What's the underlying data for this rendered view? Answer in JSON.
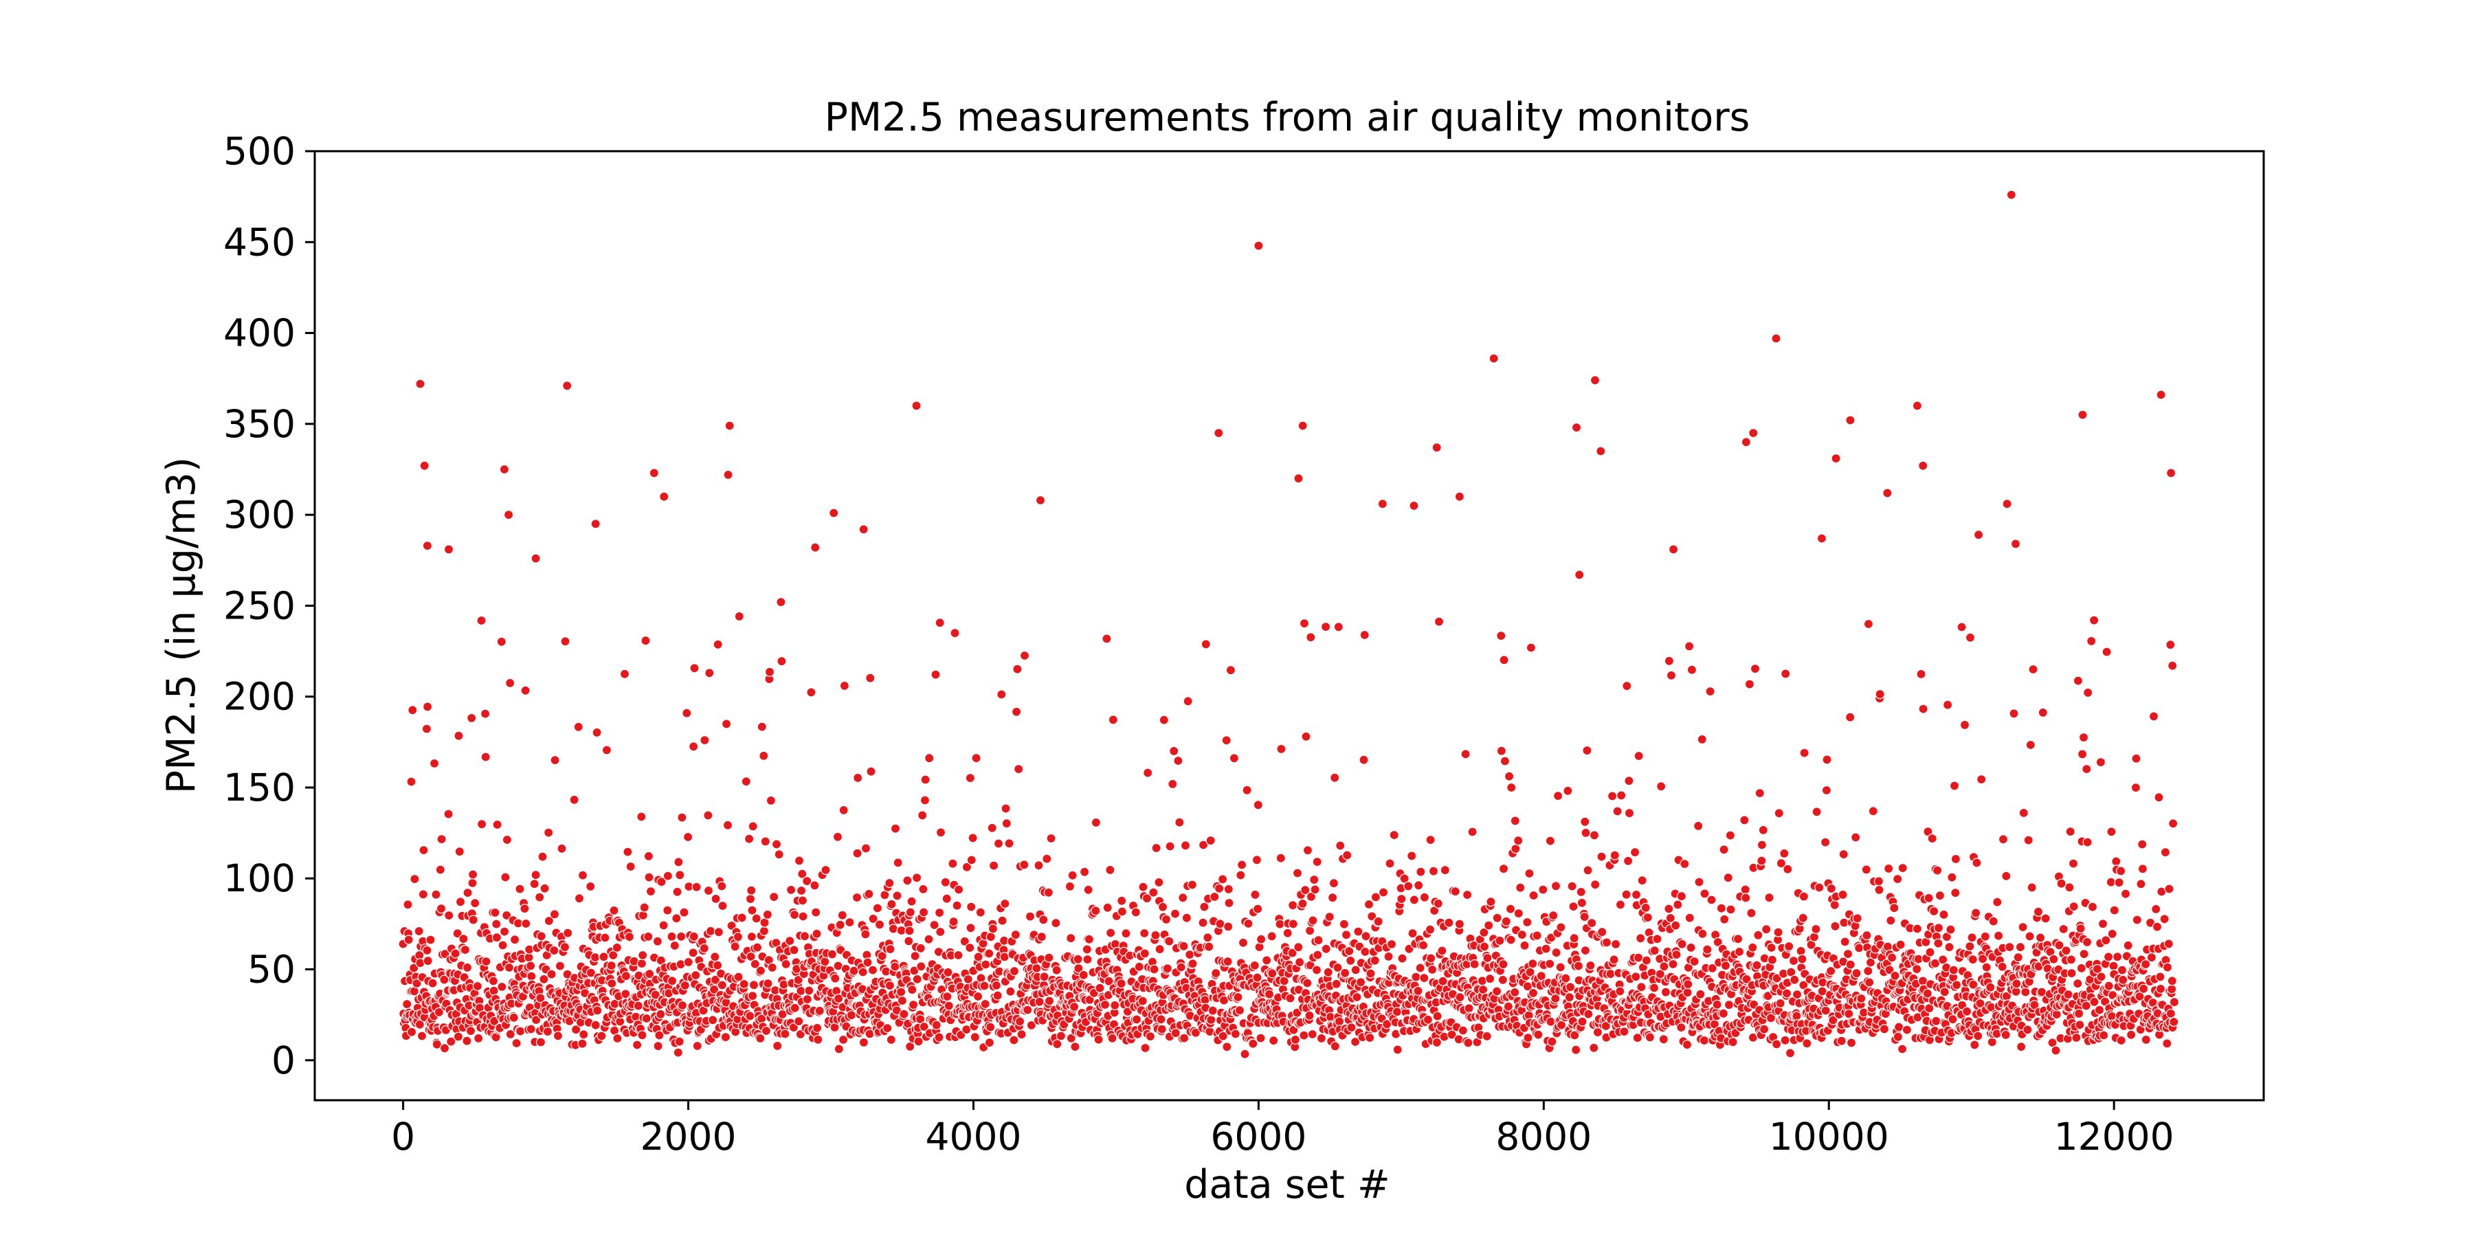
{
  "chart_data": {
    "type": "scatter",
    "title": "PM2.5 measurements from air quality monitors",
    "xlabel": "data set #",
    "ylabel": "PM2.5 (in µg/m3)",
    "xlim": [
      -620,
      13050
    ],
    "ylim": [
      -22,
      500
    ],
    "xticks": [
      0,
      2000,
      4000,
      6000,
      8000,
      10000,
      12000
    ],
    "yticks": [
      0,
      50,
      100,
      150,
      200,
      250,
      300,
      350,
      400,
      450,
      500
    ],
    "grid": false,
    "legend": "none",
    "marker_color": "#e8171b",
    "marker_edge_color": "#ffffff",
    "n_points": 12425,
    "series": [
      {
        "x": [
          120,
          150,
          170,
          320,
          710,
          740,
          930,
          1150,
          1350,
          1760,
          1830,
          2290,
          2280,
          2650,
          2890,
          3020,
          3230,
          3600,
          4470,
          5720,
          6000,
          6310,
          6280,
          6870,
          7090,
          7250,
          7410,
          7650,
          8230,
          8250,
          8360,
          8400,
          8910,
          9420,
          9470,
          9630,
          9950,
          10050,
          10150,
          10410,
          10620,
          10660,
          11050,
          11250,
          11280,
          11310,
          11780,
          11860,
          12330,
          12400,
          12410
        ],
        "y": [
          372,
          327,
          283,
          281,
          325,
          300,
          276,
          371,
          295,
          323,
          310,
          349,
          322,
          252,
          282,
          301,
          292,
          360,
          308,
          345,
          448,
          349,
          320,
          306,
          305,
          337,
          310,
          386,
          348,
          267,
          374,
          335,
          281,
          340,
          345,
          397,
          287,
          331,
          352,
          312,
          360,
          327,
          289,
          306,
          476,
          284,
          355,
          242,
          366,
          323,
          217
        ]
      }
    ]
  }
}
